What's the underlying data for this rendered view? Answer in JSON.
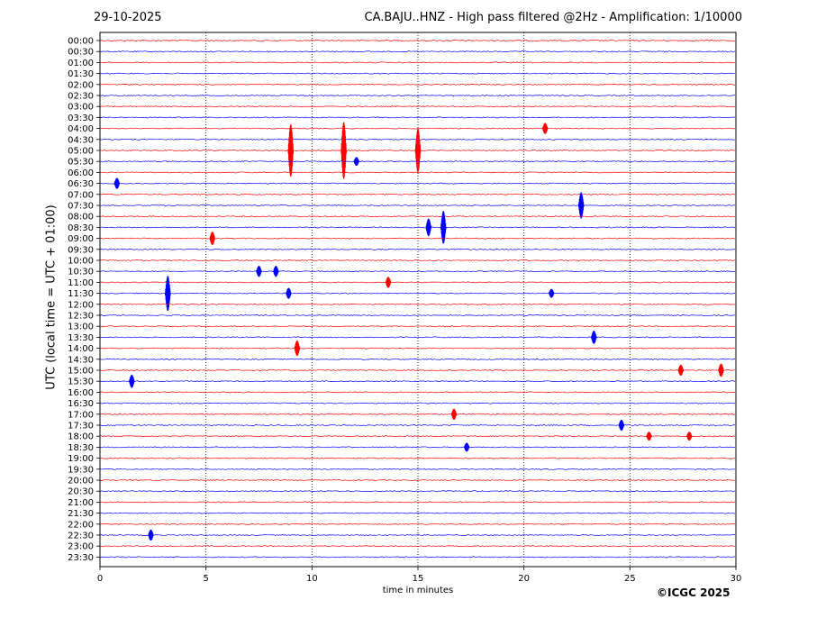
{
  "header": {
    "date": "29-10-2025",
    "title": "CA.BAJU..HNZ - High pass filtered @2Hz - Amplification: 1/10000"
  },
  "copyright": "©ICGC 2025",
  "chart_data": {
    "type": "line",
    "chart_kind": "helicorder",
    "xlabel": "time in minutes",
    "ylabel": "UTC (local time = UTC + 01:00)",
    "xlim": [
      0,
      30
    ],
    "x_ticks": [
      0,
      5,
      10,
      15,
      20,
      25,
      30
    ],
    "x_tick_labels": [
      "0",
      "5",
      "10",
      "15",
      "20",
      "25",
      "30"
    ],
    "grid": "vertical dotted lines at 5, 10, 15, 20, 25 minutes",
    "trace_colors": [
      "#ff0000",
      "#0000ff"
    ],
    "traces": [
      {
        "label": "00:00",
        "color": "#ff0000",
        "events": []
      },
      {
        "label": "00:30",
        "color": "#0000ff",
        "events": []
      },
      {
        "label": "01:00",
        "color": "#ff0000",
        "events": []
      },
      {
        "label": "01:30",
        "color": "#0000ff",
        "events": []
      },
      {
        "label": "02:00",
        "color": "#ff0000",
        "events": []
      },
      {
        "label": "02:30",
        "color": "#0000ff",
        "events": []
      },
      {
        "label": "03:00",
        "color": "#ff0000",
        "events": []
      },
      {
        "label": "03:30",
        "color": "#0000ff",
        "events": []
      },
      {
        "label": "04:00",
        "color": "#ff0000",
        "events": [
          {
            "t": 21.0,
            "amp": 0.5
          }
        ]
      },
      {
        "label": "04:30",
        "color": "#0000ff",
        "events": []
      },
      {
        "label": "05:00",
        "color": "#ff0000",
        "events": [
          {
            "t": 9.0,
            "amp": 2.4
          },
          {
            "t": 11.5,
            "amp": 2.6
          },
          {
            "t": 15.0,
            "amp": 2.0
          }
        ]
      },
      {
        "label": "05:30",
        "color": "#0000ff",
        "events": [
          {
            "t": 12.1,
            "amp": 0.4
          }
        ]
      },
      {
        "label": "06:00",
        "color": "#ff0000",
        "events": []
      },
      {
        "label": "06:30",
        "color": "#0000ff",
        "events": [
          {
            "t": 0.8,
            "amp": 0.5
          }
        ]
      },
      {
        "label": "07:00",
        "color": "#ff0000",
        "events": []
      },
      {
        "label": "07:30",
        "color": "#0000ff",
        "events": [
          {
            "t": 22.7,
            "amp": 1.2
          }
        ]
      },
      {
        "label": "08:00",
        "color": "#ff0000",
        "events": []
      },
      {
        "label": "08:30",
        "color": "#0000ff",
        "events": [
          {
            "t": 15.5,
            "amp": 0.8
          },
          {
            "t": 16.2,
            "amp": 1.5
          }
        ]
      },
      {
        "label": "09:00",
        "color": "#ff0000",
        "events": [
          {
            "t": 5.3,
            "amp": 0.6
          }
        ]
      },
      {
        "label": "09:30",
        "color": "#0000ff",
        "events": []
      },
      {
        "label": "10:00",
        "color": "#ff0000",
        "events": []
      },
      {
        "label": "10:30",
        "color": "#0000ff",
        "events": [
          {
            "t": 7.5,
            "amp": 0.5
          },
          {
            "t": 8.3,
            "amp": 0.5
          }
        ]
      },
      {
        "label": "11:00",
        "color": "#ff0000",
        "events": [
          {
            "t": 13.6,
            "amp": 0.5
          }
        ]
      },
      {
        "label": "11:30",
        "color": "#0000ff",
        "events": [
          {
            "t": 3.2,
            "amp": 1.6
          },
          {
            "t": 8.9,
            "amp": 0.5
          },
          {
            "t": 21.3,
            "amp": 0.4
          }
        ]
      },
      {
        "label": "12:00",
        "color": "#ff0000",
        "events": []
      },
      {
        "label": "12:30",
        "color": "#0000ff",
        "events": []
      },
      {
        "label": "13:00",
        "color": "#ff0000",
        "events": []
      },
      {
        "label": "13:30",
        "color": "#0000ff",
        "events": [
          {
            "t": 23.3,
            "amp": 0.6
          }
        ]
      },
      {
        "label": "14:00",
        "color": "#ff0000",
        "events": [
          {
            "t": 9.3,
            "amp": 0.7
          }
        ]
      },
      {
        "label": "14:30",
        "color": "#0000ff",
        "events": []
      },
      {
        "label": "15:00",
        "color": "#ff0000",
        "events": [
          {
            "t": 27.4,
            "amp": 0.5
          },
          {
            "t": 29.3,
            "amp": 0.6
          }
        ]
      },
      {
        "label": "15:30",
        "color": "#0000ff",
        "events": [
          {
            "t": 1.5,
            "amp": 0.6
          }
        ]
      },
      {
        "label": "16:00",
        "color": "#ff0000",
        "events": []
      },
      {
        "label": "16:30",
        "color": "#0000ff",
        "events": []
      },
      {
        "label": "17:00",
        "color": "#ff0000",
        "events": [
          {
            "t": 16.7,
            "amp": 0.5
          }
        ]
      },
      {
        "label": "17:30",
        "color": "#0000ff",
        "events": [
          {
            "t": 24.6,
            "amp": 0.5
          }
        ]
      },
      {
        "label": "18:00",
        "color": "#ff0000",
        "events": [
          {
            "t": 25.9,
            "amp": 0.4
          },
          {
            "t": 27.8,
            "amp": 0.4
          }
        ]
      },
      {
        "label": "18:30",
        "color": "#0000ff",
        "events": [
          {
            "t": 17.3,
            "amp": 0.4
          }
        ]
      },
      {
        "label": "19:00",
        "color": "#ff0000",
        "events": []
      },
      {
        "label": "19:30",
        "color": "#0000ff",
        "events": []
      },
      {
        "label": "20:00",
        "color": "#ff0000",
        "events": []
      },
      {
        "label": "20:30",
        "color": "#0000ff",
        "events": []
      },
      {
        "label": "21:00",
        "color": "#ff0000",
        "events": []
      },
      {
        "label": "21:30",
        "color": "#0000ff",
        "events": []
      },
      {
        "label": "22:00",
        "color": "#ff0000",
        "events": []
      },
      {
        "label": "22:30",
        "color": "#0000ff",
        "events": [
          {
            "t": 2.4,
            "amp": 0.5
          }
        ]
      },
      {
        "label": "23:00",
        "color": "#ff0000",
        "events": []
      },
      {
        "label": "23:30",
        "color": "#0000ff",
        "events": []
      }
    ]
  }
}
